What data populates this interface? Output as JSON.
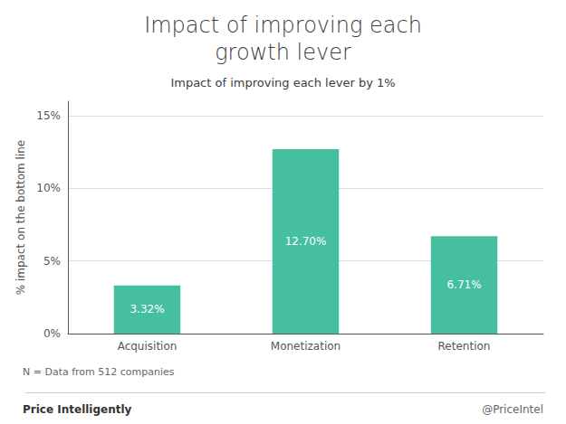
{
  "chart_data": {
    "type": "bar",
    "title": "Impact of improving each\ngrowth lever",
    "subtitle": "Impact of improving each lever by 1%",
    "categories": [
      "Acquisition",
      "Monetization",
      "Retention"
    ],
    "values": [
      3.32,
      12.7,
      6.71
    ],
    "value_labels": [
      "3.32%",
      "12.70%",
      "6.71%"
    ],
    "data_labels": true,
    "color": "#45BFA0",
    "ylabel": "% impact on the bottom line",
    "ylim": [
      0,
      16
    ],
    "yticks": [
      {
        "value": 0,
        "label": "0%"
      },
      {
        "value": 5,
        "label": "5%"
      },
      {
        "value": 10,
        "label": "10%"
      },
      {
        "value": 15,
        "label": "15%"
      }
    ],
    "grid": true,
    "annotations": [
      "N = Data from 512 companies",
      "Price Intelligently",
      "@PriceIntel"
    ]
  }
}
